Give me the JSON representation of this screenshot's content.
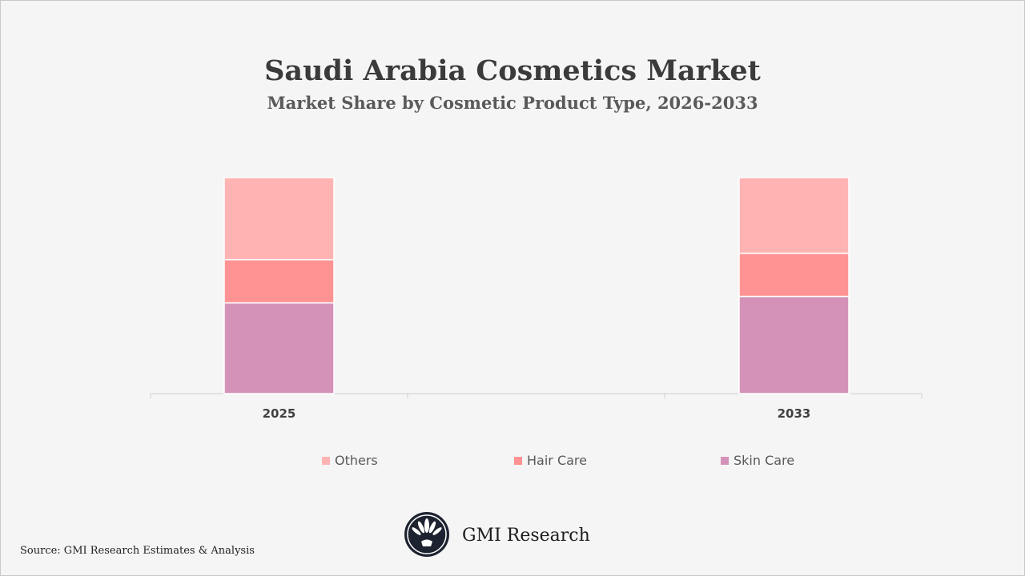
{
  "title": "Saudi Arabia Cosmetics Market",
  "subtitle": "Market Share by Cosmetic Product Type, 2026-2033",
  "source": "Source: GMI Research Estimates & Analysis",
  "brand": {
    "name": "GMI Research",
    "icon": "gmi-logo-icon"
  },
  "colors": {
    "Others": "#ffb3b3",
    "Hair Care": "#ff9393",
    "Skin Care": "#d592b9"
  },
  "chart_data": {
    "type": "bar",
    "stacked": true,
    "categories": [
      "2025",
      "2033"
    ],
    "series": [
      {
        "name": "Skin Care",
        "values": [
          42,
          45
        ]
      },
      {
        "name": "Hair Care",
        "values": [
          20,
          20
        ]
      },
      {
        "name": "Others",
        "values": [
          38,
          35
        ]
      }
    ],
    "ylim": [
      0,
      100
    ],
    "grid": false,
    "legend": "bottom"
  }
}
